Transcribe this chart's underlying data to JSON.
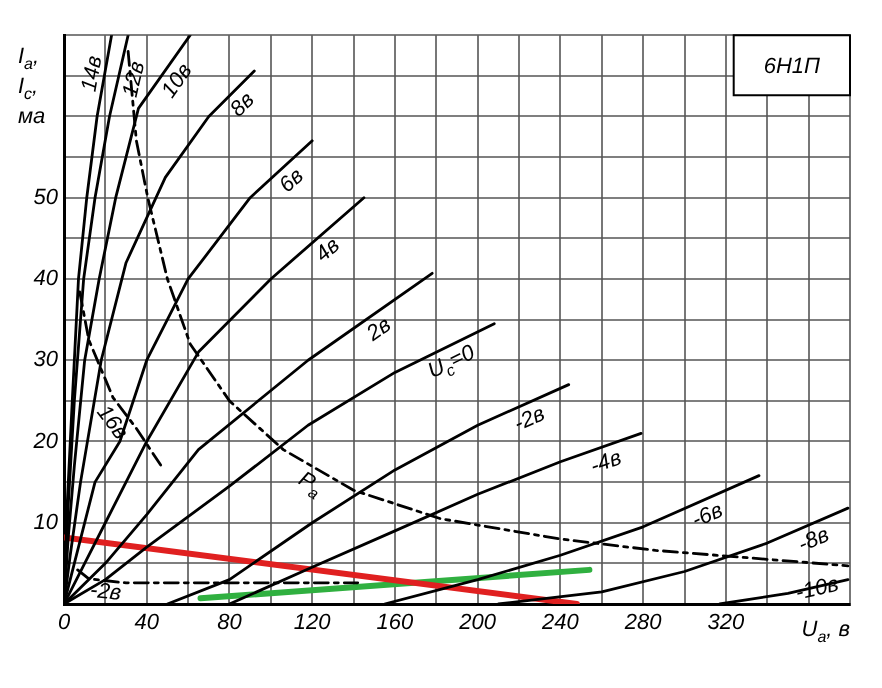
{
  "chart_data": {
    "type": "line",
    "title": "6Н1П",
    "xlabel": "U$_{а}$, в",
    "ylabel": "I$_{а}$, I$_{с}$, ма",
    "xlim": [
      0,
      380
    ],
    "ylim": [
      0,
      70
    ],
    "xticks": [
      0,
      {
        "value": 20,
        "label": null
      },
      40,
      {
        "value": 60,
        "label": null
      },
      80,
      {
        "value": 100,
        "label": null
      },
      120,
      {
        "value": 140,
        "label": null
      },
      160,
      {
        "value": 180,
        "label": null
      },
      200,
      {
        "value": 220,
        "label": null
      },
      240,
      {
        "value": 260,
        "label": null
      },
      280,
      {
        "value": 300,
        "label": null
      },
      320,
      {
        "value": 340,
        "label": null
      },
      {
        "value": 360,
        "label": null
      },
      {
        "value": 380,
        "label": null
      }
    ],
    "yticks": [
      {
        "value": 0,
        "label": null
      },
      {
        "value": 5,
        "label": null
      },
      10,
      {
        "value": 15,
        "label": null
      },
      20,
      {
        "value": 25,
        "label": null
      },
      30,
      {
        "value": 35,
        "label": null
      },
      40,
      {
        "value": 45,
        "label": null
      },
      50,
      {
        "value": 55,
        "label": null
      },
      {
        "value": 60,
        "label": null
      },
      {
        "value": 65,
        "label": null
      },
      {
        "value": 70,
        "label": null
      }
    ],
    "grid": true,
    "legend": false,
    "marker": "none",
    "series": [
      {
        "name": "14в",
        "color": "#000000",
        "x": [
          0,
          1.5,
          4,
          7,
          11,
          16,
          23
        ],
        "values": [
          0,
          12,
          25,
          40,
          50,
          60,
          70
        ]
      },
      {
        "name": "12в",
        "color": "#000000",
        "x": [
          0,
          2,
          5,
          9.5,
          15,
          22,
          31
        ],
        "values": [
          0,
          12,
          25,
          40,
          50,
          60,
          70
        ]
      },
      {
        "name": "10в",
        "color": "#000000",
        "x": [
          0,
          2,
          5,
          10,
          17,
          25,
          36,
          61
        ],
        "values": [
          0,
          8,
          17,
          30,
          40,
          50,
          61,
          70
        ]
      },
      {
        "name": "8в",
        "color": "#000000",
        "x": [
          0,
          3,
          8,
          18,
          30,
          49,
          70,
          92
        ],
        "values": [
          0,
          6,
          15,
          30,
          42,
          52.5,
          60,
          65.6
        ]
      },
      {
        "name": "6в",
        "color": "#000000",
        "x": [
          0,
          5,
          15,
          27,
          40,
          60,
          90,
          120
        ],
        "values": [
          0,
          5,
          15,
          20,
          30,
          40,
          50,
          57
        ]
      },
      {
        "name": "4в",
        "color": "#000000",
        "x": [
          0,
          10,
          20,
          40,
          65,
          100,
          145
        ],
        "values": [
          0,
          5,
          10,
          20,
          31,
          40,
          50
        ]
      },
      {
        "name": "2в",
        "color": "#000000",
        "x": [
          0,
          20,
          40,
          65,
          118,
          178
        ],
        "values": [
          0,
          5,
          11,
          19,
          30,
          40.7
        ]
      },
      {
        "name": "U$_{с}$=0",
        "color": "#000000",
        "x": [
          0,
          20,
          40,
          80,
          118,
          160,
          208
        ],
        "values": [
          0,
          3,
          7,
          14.5,
          22,
          28.5,
          34.5
        ]
      },
      {
        "name": "-2в",
        "color": "#000000",
        "x": [
          50,
          80,
          120,
          160,
          200,
          244
        ],
        "values": [
          0,
          3,
          10,
          16.5,
          22,
          27
        ]
      },
      {
        "name": "-4в",
        "color": "#000000",
        "x": [
          80,
          118,
          160,
          200,
          240,
          279
        ],
        "values": [
          0,
          4.3,
          9,
          13.5,
          17.5,
          21
        ]
      },
      {
        "name": "-6в",
        "color": "#000000",
        "x": [
          155,
          200,
          240,
          280,
          336
        ],
        "values": [
          0,
          3,
          6,
          9.5,
          15.8
        ]
      },
      {
        "name": "-8в",
        "color": "#000000",
        "x": [
          210,
          260,
          300,
          340,
          379
        ],
        "values": [
          0,
          1.5,
          4,
          7.5,
          11.8
        ]
      },
      {
        "name": "-10в",
        "color": "#000000",
        "x": [
          317,
          350,
          379
        ],
        "values": [
          0,
          1.3,
          3
        ]
      },
      {
        "name": "P$_{а}$",
        "color": "#000000",
        "line_style": "dashed",
        "x": [
          31,
          35,
          40.5,
          50,
          61,
          80,
          106,
          140,
          182,
          240,
          286,
          340,
          379
        ],
        "values": [
          68,
          57,
          50,
          40,
          32,
          25,
          19,
          14,
          10.5,
          8,
          6.6,
          5.5,
          4.7
        ]
      },
      {
        "name": "16в",
        "color": "#000000",
        "line_style": "dashed",
        "x": [
          7.6,
          12,
          23.7,
          35,
          47
        ],
        "values": [
          38.4,
          32.5,
          25.4,
          21.6,
          17
        ]
      },
      {
        "name": "-2в",
        "color": "#000000",
        "line_style": "dashed",
        "x": [
          6.6,
          12,
          30,
          142
        ],
        "values": [
          4.2,
          3.1,
          2.6,
          2.6
        ]
      },
      {
        "color": "#e02020",
        "x": [
          0,
          248
        ],
        "values": [
          8.2,
          0
        ]
      },
      {
        "color": "#30b040",
        "x": [
          66,
          254
        ],
        "values": [
          0.7,
          4.2
        ]
      }
    ]
  }
}
